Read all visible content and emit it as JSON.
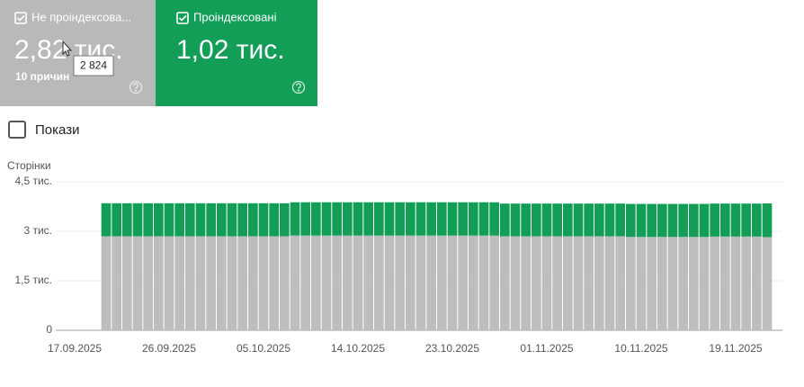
{
  "cards": [
    {
      "label": "Не проіндексова...",
      "value": "2,82 тис.",
      "sub": "10 причин",
      "tooltip": "2 824",
      "color": "#b9b9b9"
    },
    {
      "label": "Проіндексовані",
      "value": "1,02 тис.",
      "color": "#139e58"
    }
  ],
  "toggle": {
    "label": "Покази"
  },
  "chart_data": {
    "type": "bar",
    "stacked": true,
    "y_label": "Сторінки",
    "categories": [
      "17.09.2025",
      null,
      null,
      null,
      null,
      null,
      null,
      null,
      null,
      "26.09.2025",
      null,
      null,
      null,
      null,
      null,
      null,
      null,
      null,
      "05.10.2025",
      null,
      null,
      null,
      null,
      null,
      null,
      null,
      null,
      "14.10.2025",
      null,
      null,
      null,
      null,
      null,
      null,
      null,
      null,
      "23.10.2025",
      null,
      null,
      null,
      null,
      null,
      null,
      null,
      null,
      "01.11.2025",
      null,
      null,
      null,
      null,
      null,
      null,
      null,
      null,
      "10.11.2025",
      null,
      null,
      null,
      null,
      null,
      null,
      null,
      null,
      "19.11.2025",
      null,
      null,
      null
    ],
    "series": [
      {
        "color": "#bdbdbd",
        "values": [
          null,
          null,
          null,
          2850,
          2850,
          2850,
          2850,
          2850,
          2850,
          2850,
          2850,
          2850,
          2850,
          2850,
          2850,
          2850,
          2850,
          2850,
          2850,
          2850,
          2850,
          2870,
          2870,
          2870,
          2870,
          2870,
          2870,
          2870,
          2870,
          2870,
          2870,
          2870,
          2870,
          2870,
          2870,
          2870,
          2870,
          2870,
          2870,
          2870,
          2870,
          2850,
          2850,
          2850,
          2850,
          2850,
          2850,
          2850,
          2850,
          2850,
          2850,
          2850,
          2850,
          2830,
          2830,
          2830,
          2830,
          2830,
          2830,
          2830,
          2830,
          2840,
          2840,
          2840,
          2840,
          2840,
          2824
        ]
      },
      {
        "color": "#139e58",
        "values": [
          null,
          null,
          null,
          1000,
          1000,
          1000,
          1000,
          1000,
          1000,
          1000,
          1000,
          1000,
          1000,
          1000,
          1000,
          1000,
          1000,
          1000,
          1000,
          1000,
          1000,
          1010,
          1010,
          1010,
          1010,
          1010,
          1010,
          1010,
          1010,
          1010,
          1010,
          1010,
          1010,
          1010,
          1010,
          1010,
          1010,
          1010,
          1010,
          1010,
          1010,
          990,
          990,
          990,
          990,
          990,
          990,
          990,
          990,
          990,
          990,
          990,
          990,
          1000,
          1000,
          1000,
          1000,
          1000,
          1000,
          1000,
          1000,
          1000,
          1000,
          1000,
          1000,
          1000,
          1020
        ]
      }
    ],
    "ylim": [
      0,
      4500
    ],
    "yticks": [
      0,
      {
        "value": 1500,
        "label": "1,5 тис."
      },
      {
        "value": 3000,
        "label": "3 тис."
      },
      {
        "value": 4500,
        "label": "4,5 тис."
      }
    ],
    "grid": true
  }
}
